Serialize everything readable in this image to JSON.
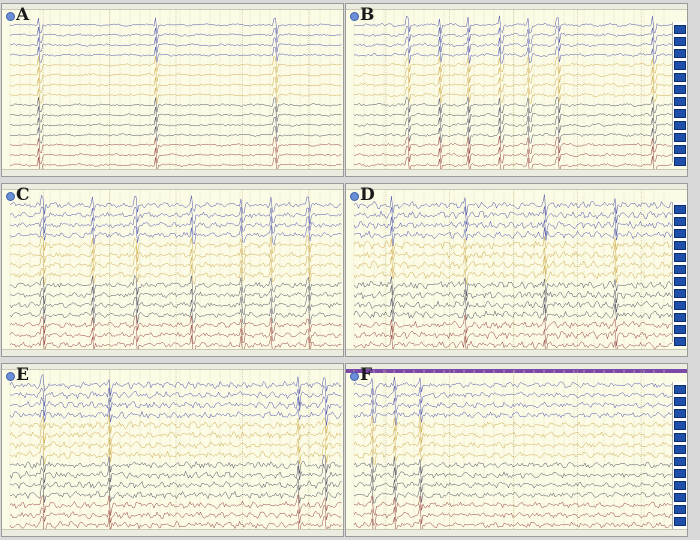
{
  "panels": [
    {
      "id": "A",
      "label": "A",
      "sidebar": false,
      "purple_bar": false
    },
    {
      "id": "B",
      "label": "B",
      "sidebar": true,
      "purple_bar": false
    },
    {
      "id": "C",
      "label": "C",
      "sidebar": false,
      "purple_bar": false
    },
    {
      "id": "D",
      "label": "D",
      "sidebar": true,
      "purple_bar": false
    },
    {
      "id": "E",
      "label": "E",
      "sidebar": false,
      "purple_bar": false
    },
    {
      "id": "F",
      "label": "F",
      "sidebar": true,
      "purple_bar": true
    }
  ],
  "channels": 15,
  "colors": {
    "blue": "#3a3fa6",
    "yellow": "#c9a23a",
    "dark": "#3a3a52",
    "red": "#8a2a2a",
    "grid": "#e6e3c4",
    "sidebar_button": "#1f4fa8"
  }
}
